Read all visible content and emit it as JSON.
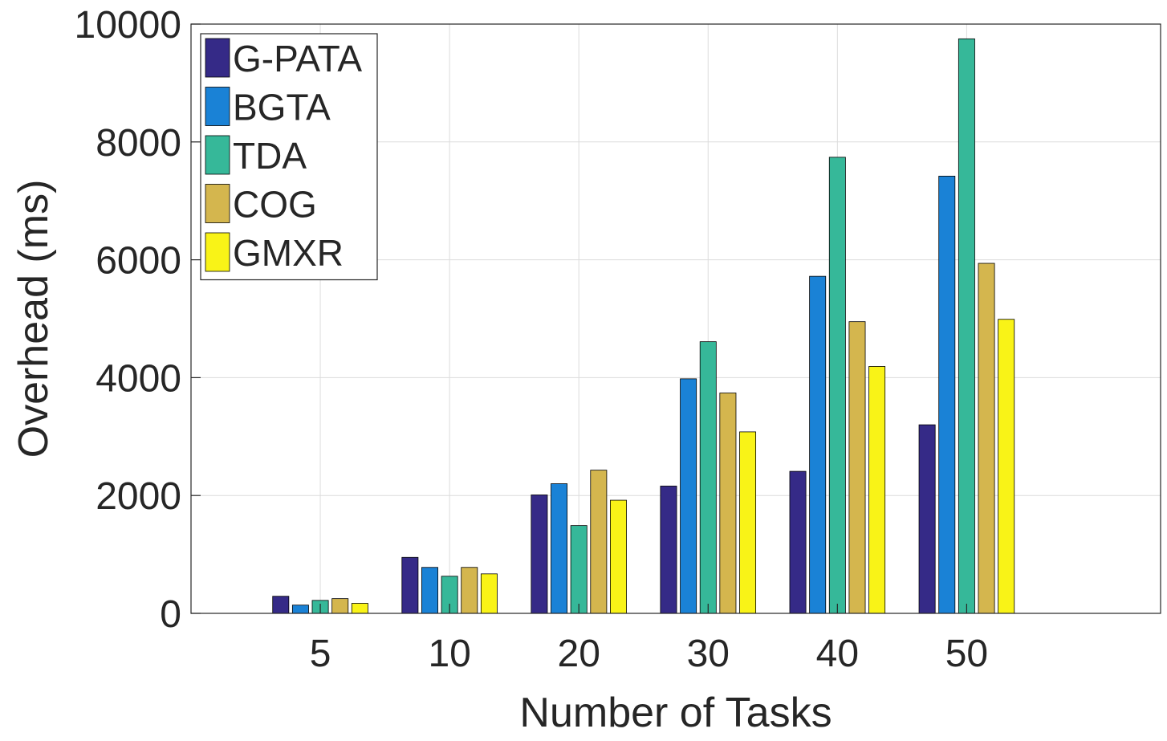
{
  "chart_data": {
    "type": "bar",
    "title": "",
    "xlabel": "Number of Tasks",
    "ylabel": "Overhead (ms)",
    "categories": [
      "5",
      "10",
      "20",
      "30",
      "40",
      "50"
    ],
    "ylim": [
      0,
      10000
    ],
    "yticks": [
      0,
      2000,
      4000,
      6000,
      8000,
      10000
    ],
    "ytick_labels": [
      "0",
      "2000",
      "4000",
      "6000",
      "8000",
      "10000"
    ],
    "grid": true,
    "legend_position": "top-left",
    "series": [
      {
        "name": "G-PATA",
        "color": "#352a87",
        "values": [
          290,
          950,
          2010,
          2160,
          2410,
          3200
        ]
      },
      {
        "name": "BGTA",
        "color": "#1a82d6",
        "values": [
          140,
          780,
          2200,
          3980,
          5720,
          7420
        ]
      },
      {
        "name": "TDA",
        "color": "#36b899",
        "values": [
          220,
          630,
          1490,
          4610,
          7740,
          9750
        ]
      },
      {
        "name": "COG",
        "color": "#d4b64e",
        "values": [
          250,
          780,
          2430,
          3740,
          4950,
          5940
        ]
      },
      {
        "name": "GMXR",
        "color": "#f9f317",
        "values": [
          170,
          670,
          1920,
          3080,
          4190,
          4990
        ]
      }
    ]
  }
}
